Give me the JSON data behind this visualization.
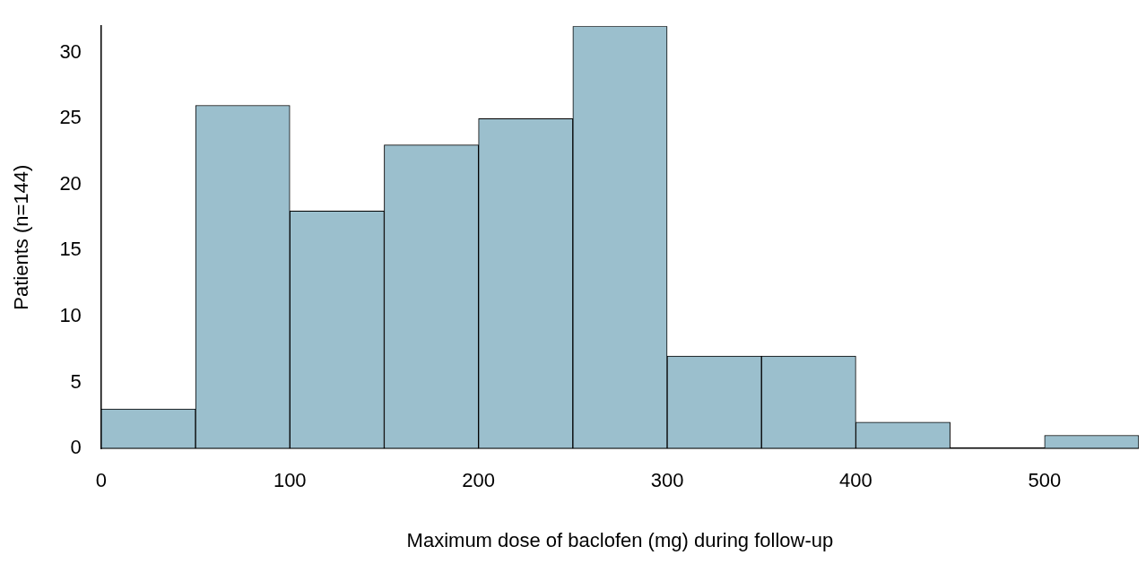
{
  "chart_data": {
    "type": "histogram",
    "xlabel": "Maximum dose of baclofen (mg) during follow-up",
    "ylabel": "Patients (n=144)",
    "bins": [
      0,
      50,
      100,
      150,
      200,
      250,
      300,
      350,
      400,
      450,
      500,
      550
    ],
    "values": [
      3,
      26,
      18,
      23,
      25,
      32,
      7,
      7,
      2,
      0,
      1
    ],
    "color": "#9bbfcd",
    "xlim": [
      0,
      550
    ],
    "xticks": [
      0,
      100,
      200,
      300,
      400,
      500
    ],
    "ylim": [
      0,
      32
    ],
    "yticks": [
      0,
      5,
      10,
      15,
      20,
      25,
      30
    ],
    "grid": false,
    "legend": false
  }
}
